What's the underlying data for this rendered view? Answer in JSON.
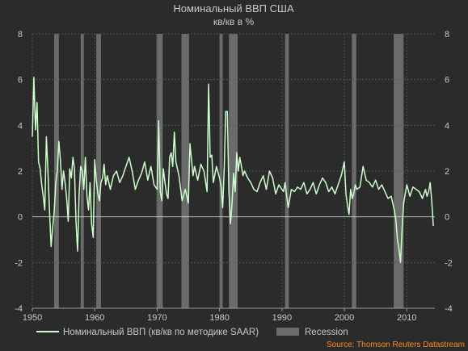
{
  "chart_data": {
    "type": "line",
    "title": "Номинальный ВВП США",
    "subtitle": "кв/кв в %",
    "xlabel": "",
    "ylabel": "",
    "xlim": [
      1950.0,
      2014.5
    ],
    "ylim": [
      -4,
      8
    ],
    "y_ticks": [
      -4,
      -2,
      0,
      2,
      4,
      6,
      8
    ],
    "x_ticks": [
      1950,
      1960,
      1970,
      1980,
      1990,
      2000,
      2010
    ],
    "grid": true,
    "legend_position": "bottom",
    "recessions": [
      [
        1953.5,
        1954.25
      ],
      [
        1957.75,
        1958.25
      ],
      [
        1960.25,
        1961.0
      ],
      [
        1969.9,
        1970.9
      ],
      [
        1973.9,
        1975.1
      ],
      [
        1980.0,
        1980.5
      ],
      [
        1981.5,
        1982.9
      ],
      [
        1990.5,
        1991.1
      ],
      [
        2001.2,
        2001.9
      ],
      [
        2007.9,
        2009.5
      ]
    ],
    "series": [
      {
        "name": "Номинальный ВВП (кв/кв по методике SAAR)",
        "color": "#ccffcc",
        "x": [
          1950.0,
          1950.25,
          1950.5,
          1950.75,
          1951.0,
          1951.25,
          1951.5,
          1951.75,
          1952.0,
          1952.25,
          1952.5,
          1952.75,
          1953.0,
          1953.25,
          1953.5,
          1953.75,
          1954.0,
          1954.25,
          1954.5,
          1954.75,
          1955.0,
          1955.25,
          1955.5,
          1955.75,
          1956.0,
          1956.25,
          1956.5,
          1956.75,
          1957.0,
          1957.25,
          1957.5,
          1957.75,
          1958.0,
          1958.25,
          1958.5,
          1958.75,
          1959.0,
          1959.25,
          1959.5,
          1959.75,
          1960.0,
          1960.25,
          1960.5,
          1960.75,
          1961.0,
          1961.25,
          1961.5,
          1961.75,
          1962.0,
          1962.5,
          1963.0,
          1963.5,
          1964.0,
          1964.5,
          1965.0,
          1965.5,
          1966.0,
          1966.5,
          1967.0,
          1967.5,
          1968.0,
          1968.5,
          1969.0,
          1969.5,
          1970.0,
          1970.25,
          1970.5,
          1970.75,
          1971.0,
          1971.25,
          1971.5,
          1971.75,
          1972.0,
          1972.25,
          1972.5,
          1972.75,
          1973.0,
          1973.5,
          1974.0,
          1974.5,
          1975.0,
          1975.25,
          1975.5,
          1975.75,
          1976.0,
          1976.5,
          1977.0,
          1977.5,
          1978.0,
          1978.25,
          1978.5,
          1978.75,
          1979.0,
          1979.5,
          1980.0,
          1980.25,
          1980.5,
          1980.75,
          1981.0,
          1981.25,
          1981.5,
          1981.75,
          1982.0,
          1982.25,
          1982.5,
          1982.75,
          1983.0,
          1983.25,
          1983.5,
          1983.75,
          1984.0,
          1984.5,
          1985.0,
          1985.5,
          1986.0,
          1986.5,
          1987.0,
          1987.5,
          1988.0,
          1988.5,
          1989.0,
          1989.5,
          1990.0,
          1990.25,
          1990.5,
          1990.75,
          1991.0,
          1991.5,
          1992.0,
          1992.5,
          1993.0,
          1993.5,
          1994.0,
          1994.5,
          1995.0,
          1995.5,
          1996.0,
          1996.5,
          1997.0,
          1997.5,
          1998.0,
          1998.5,
          1999.0,
          1999.5,
          2000.0,
          2000.25,
          2000.5,
          2000.75,
          2001.0,
          2001.25,
          2001.5,
          2001.75,
          2002.0,
          2002.5,
          2003.0,
          2003.5,
          2004.0,
          2004.5,
          2005.0,
          2005.5,
          2006.0,
          2006.5,
          2007.0,
          2007.5,
          2008.0,
          2008.25,
          2008.5,
          2008.75,
          2009.0,
          2009.25,
          2009.5,
          2009.75,
          2010.0,
          2010.5,
          2011.0,
          2011.5,
          2012.0,
          2012.5,
          2013.0,
          2013.25,
          2013.5,
          2013.75,
          2014.0,
          2014.25
        ],
        "values": [
          3.5,
          6.1,
          3.8,
          5.0,
          2.4,
          2.1,
          1.4,
          0.9,
          0.3,
          3.5,
          2.0,
          0.3,
          -1.3,
          -0.5,
          0.2,
          1.5,
          2.0,
          3.3,
          2.5,
          1.2,
          2.0,
          1.5,
          0.8,
          -0.2,
          2.1,
          1.7,
          2.6,
          2.1,
          -0.2,
          -1.5,
          1.0,
          2.2,
          2.0,
          1.2,
          2.6,
          0.9,
          0.3,
          1.5,
          -0.3,
          -0.9,
          2.5,
          1.6,
          1.0,
          0.7,
          1.5,
          1.7,
          2.3,
          1.4,
          1.8,
          1.2,
          1.8,
          2.0,
          1.5,
          1.8,
          2.2,
          2.6,
          2.0,
          1.2,
          1.6,
          1.9,
          2.4,
          1.6,
          2.2,
          1.4,
          1.2,
          4.2,
          1.1,
          0.7,
          2.1,
          1.5,
          1.0,
          0.8,
          2.6,
          2.8,
          2.2,
          3.7,
          2.4,
          1.8,
          0.7,
          1.2,
          0.6,
          3.2,
          2.5,
          1.8,
          2.2,
          1.6,
          2.3,
          2.0,
          1.1,
          5.8,
          2.6,
          2.7,
          1.5,
          2.2,
          1.7,
          1.3,
          0.4,
          2.1,
          4.6,
          4.6,
          1.1,
          -0.3,
          0.6,
          1.9,
          1.1,
          2.8,
          2.0,
          2.6,
          2.2,
          1.8,
          2.0,
          1.7,
          1.5,
          1.2,
          1.1,
          1.5,
          1.8,
          1.2,
          2.0,
          1.7,
          1.0,
          1.4,
          1.2,
          1.1,
          1.5,
          0.9,
          0.4,
          1.2,
          1.1,
          1.3,
          1.2,
          1.5,
          1.0,
          1.2,
          1.5,
          1.0,
          1.4,
          1.7,
          1.5,
          1.1,
          1.3,
          1.0,
          1.4,
          1.8,
          2.4,
          1.0,
          0.5,
          0.1,
          1.2,
          0.8,
          1.0,
          1.4,
          1.2,
          1.3,
          2.2,
          1.6,
          1.5,
          1.3,
          1.6,
          1.2,
          1.4,
          1.1,
          0.8,
          0.9,
          0.3,
          -0.1,
          -1.0,
          -1.4,
          -2.0,
          -0.5,
          0.6,
          1.0,
          1.4,
          0.9,
          1.3,
          1.2,
          1.1,
          0.8,
          1.2,
          0.9,
          1.1,
          1.5,
          0.7,
          -0.4
        ]
      },
      {
        "name": "Recession",
        "color": "#6b6b6b"
      }
    ]
  },
  "source": "Source: Thomson Reuters Datastream",
  "colors": {
    "background": "#2b2b2b",
    "text": "#c8c8c8",
    "line": "#ccffcc",
    "recession": "#6b6b6b",
    "source": "#ff8c1a"
  }
}
